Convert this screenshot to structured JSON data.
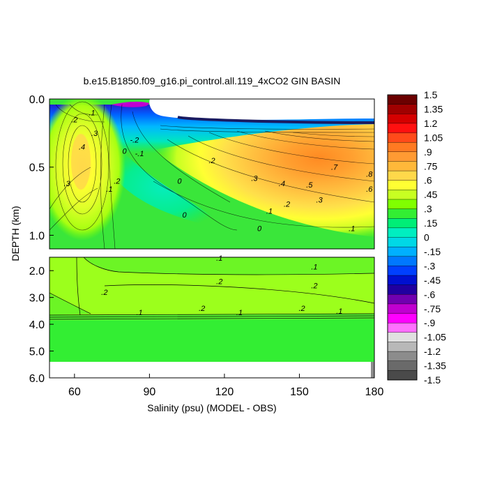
{
  "chart_data": {
    "type": "heatmap",
    "title": "b.e15.B1850.f09_g16.pi_control.all.119_4xCO2 GIN BASIN",
    "xlabel": "Salinity (psu) (MODEL - OBS)",
    "ylabel": "DEPTH (km)",
    "x_ticks": [
      60,
      90,
      120,
      150,
      180
    ],
    "x_tick_labels": [
      "60",
      "90",
      "120",
      "150",
      "180"
    ],
    "xlim": [
      50,
      180
    ],
    "upper_panel": {
      "ylim": [
        0.0,
        1.1
      ],
      "y_ticks": [
        0.0,
        0.5,
        1.0
      ],
      "y_tick_labels": [
        "0.0",
        "0.5",
        "1.0"
      ]
    },
    "lower_panel": {
      "ylim": [
        1.5,
        6.0
      ],
      "y_ticks": [
        2.0,
        3.0,
        4.0,
        5.0,
        6.0
      ],
      "y_tick_labels": [
        "2.0",
        "3.0",
        "4.0",
        "5.0",
        "6.0"
      ]
    },
    "colorbar": {
      "min": -1.5,
      "max": 1.5,
      "labels": [
        "1.5",
        "1.35",
        "1.2",
        "1.05",
        ".9",
        ".75",
        ".6",
        ".45",
        ".3",
        ".15",
        "0",
        "-.15",
        "-.3",
        "-.45",
        "-.6",
        "-.75",
        "-.9",
        "-1.05",
        "-1.2",
        "-1.35",
        "-1.5"
      ],
      "colors": [
        "#6b0000",
        "#a00000",
        "#d40000",
        "#ff1010",
        "#ff4a1a",
        "#ff7a22",
        "#ff9a33",
        "#ffb83a",
        "#ffd84a",
        "#ffff33",
        "#c8ff22",
        "#80ff00",
        "#33ee33",
        "#00ee77",
        "#00eec0",
        "#00d8e6",
        "#00b0ff",
        "#0078ff",
        "#0040ff",
        "#0010d0",
        "#2000a0",
        "#7000b0",
        "#c000d0",
        "#ff00ff",
        "#ff70ff",
        "#e0e0e0",
        "#b8b8b8",
        "#8c8c8c",
        "#6a6a6a",
        "#4a4a4a"
      ]
    },
    "contour_labels": [
      {
        "text": ".4",
        "x": 63,
        "y": 0.35,
        "panel": "upper"
      },
      {
        "text": ".3",
        "x": 57,
        "y": 0.62,
        "panel": "upper"
      },
      {
        "text": ".3",
        "x": 68,
        "y": 0.25,
        "panel": "upper"
      },
      {
        "text": ".2",
        "x": 60,
        "y": 0.15,
        "panel": "upper"
      },
      {
        "text": ".1",
        "x": 67,
        "y": 0.1,
        "panel": "upper"
      },
      {
        "text": ".1",
        "x": 74,
        "y": 0.66,
        "panel": "upper"
      },
      {
        "text": ".2",
        "x": 77,
        "y": 0.6,
        "panel": "upper"
      },
      {
        "text": "0",
        "x": 80,
        "y": 0.38,
        "panel": "upper"
      },
      {
        "text": "-.1",
        "x": 86,
        "y": 0.4,
        "panel": "upper"
      },
      {
        "text": "-.2",
        "x": 84,
        "y": 0.3,
        "panel": "upper"
      },
      {
        "text": "0",
        "x": 102,
        "y": 0.6,
        "panel": "upper"
      },
      {
        "text": "0",
        "x": 104,
        "y": 0.85,
        "panel": "upper"
      },
      {
        "text": "0",
        "x": 134,
        "y": 0.95,
        "panel": "upper"
      },
      {
        "text": ".2",
        "x": 115,
        "y": 0.45,
        "panel": "upper"
      },
      {
        "text": ".3",
        "x": 132,
        "y": 0.58,
        "panel": "upper"
      },
      {
        "text": ".1",
        "x": 138,
        "y": 0.82,
        "panel": "upper"
      },
      {
        "text": ".2",
        "x": 145,
        "y": 0.77,
        "panel": "upper"
      },
      {
        "text": ".3",
        "x": 158,
        "y": 0.74,
        "panel": "upper"
      },
      {
        "text": ".4",
        "x": 143,
        "y": 0.62,
        "panel": "upper"
      },
      {
        "text": ".5",
        "x": 154,
        "y": 0.63,
        "panel": "upper"
      },
      {
        "text": ".6",
        "x": 178,
        "y": 0.66,
        "panel": "upper"
      },
      {
        "text": ".7",
        "x": 164,
        "y": 0.5,
        "panel": "upper"
      },
      {
        "text": ".8",
        "x": 178,
        "y": 0.55,
        "panel": "upper"
      },
      {
        "text": ".1",
        "x": 171,
        "y": 0.95,
        "panel": "upper"
      },
      {
        "text": ".1",
        "x": 118,
        "y": 1.53,
        "panel": "lower"
      },
      {
        "text": ".1",
        "x": 156,
        "y": 1.85,
        "panel": "lower"
      },
      {
        "text": ".2",
        "x": 118,
        "y": 2.4,
        "panel": "lower"
      },
      {
        "text": ".2",
        "x": 156,
        "y": 2.55,
        "panel": "lower"
      },
      {
        "text": ".2",
        "x": 72,
        "y": 2.8,
        "panel": "lower"
      },
      {
        "text": ".2",
        "x": 111,
        "y": 3.4,
        "panel": "lower"
      },
      {
        "text": ".2",
        "x": 151,
        "y": 3.4,
        "panel": "lower"
      },
      {
        "text": ".1",
        "x": 86,
        "y": 3.55,
        "panel": "lower"
      },
      {
        "text": ".1",
        "x": 126,
        "y": 3.55,
        "panel": "lower"
      },
      {
        "text": ".1",
        "x": 166,
        "y": 3.5,
        "panel": "lower"
      }
    ]
  }
}
